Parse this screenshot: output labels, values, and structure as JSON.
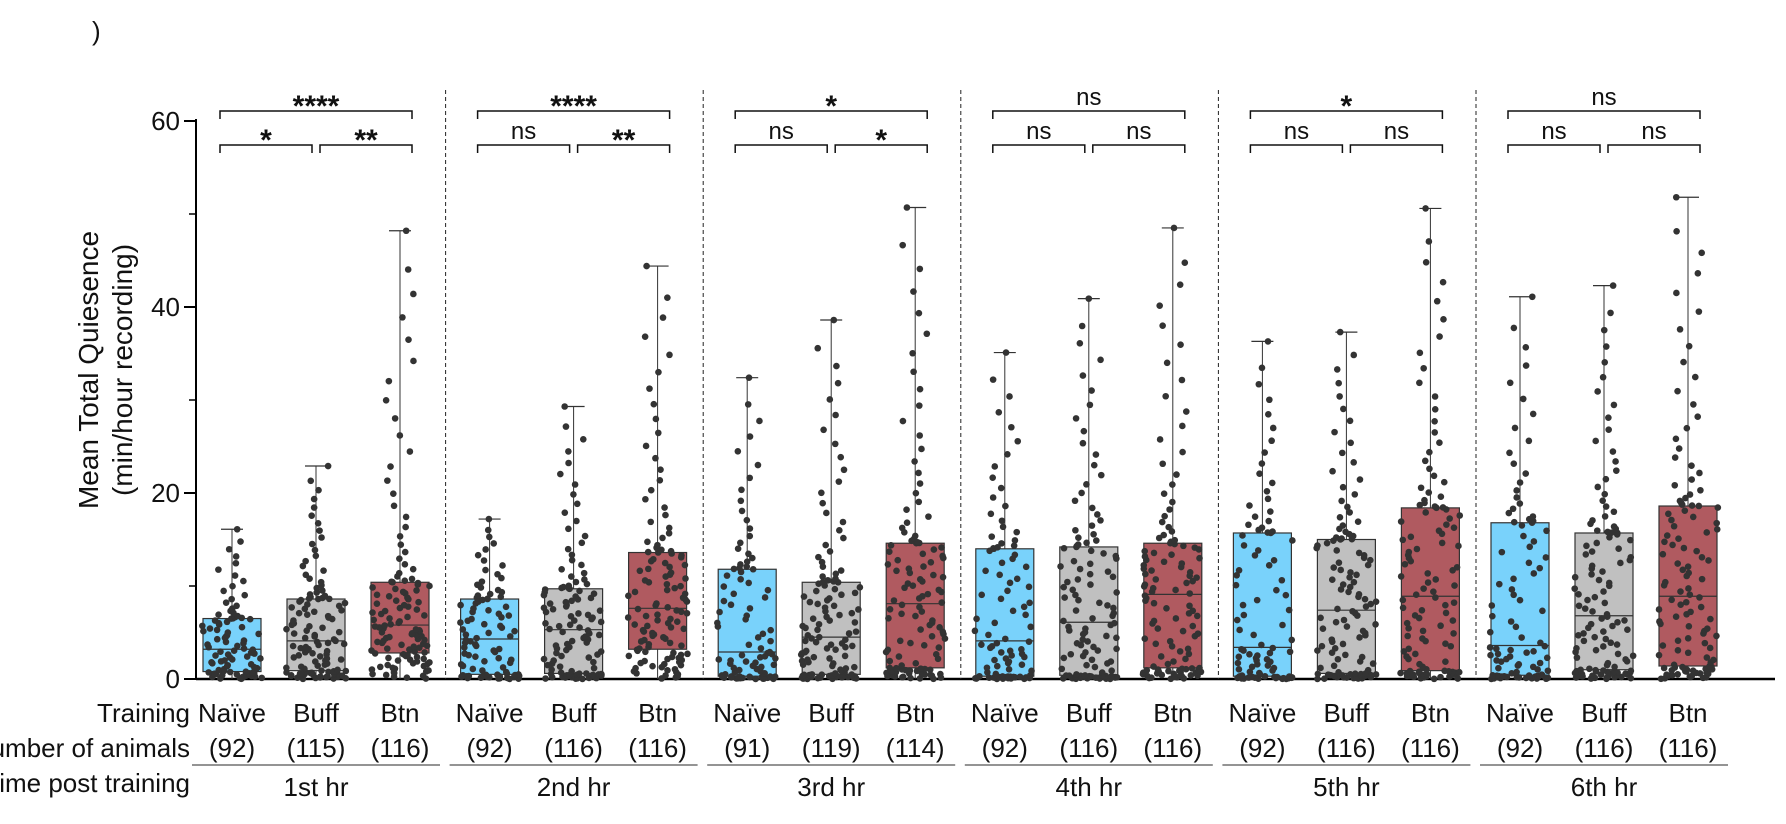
{
  "chart_data": {
    "type": "box",
    "panel_label": ")",
    "ylabel_lines": [
      "Mean Total Quiesence",
      "(min/hour recording)"
    ],
    "ylim": [
      0,
      60
    ],
    "yticks": [
      0,
      20,
      40,
      60
    ],
    "row_labels": [
      "Training",
      "umber of animals",
      "Time post training"
    ],
    "series_colors": {
      "Naïve": "#79d2fb",
      "Buff": "#c0c0c0",
      "Btn": "#b05a60"
    },
    "point_color": "#333333",
    "groups": [
      {
        "label": "1st hr",
        "boxes": [
          {
            "name": "Naïve",
            "n": "(92)",
            "min": 0,
            "q1": 0.8,
            "median": 3.2,
            "q3": 6.5,
            "max": 16.1
          },
          {
            "name": "Buff",
            "n": "(115)",
            "min": 0,
            "q1": 0.9,
            "median": 4.1,
            "q3": 8.6,
            "max": 22.9
          },
          {
            "name": "Btn",
            "n": "(116)",
            "min": 0,
            "q1": 2.8,
            "median": 5.8,
            "q3": 10.4,
            "max": 48.2
          }
        ],
        "sig": {
          "pair_12": "*",
          "pair_23": "**",
          "pair_13": "****"
        }
      },
      {
        "label": "2nd hr",
        "boxes": [
          {
            "name": "Naïve",
            "n": "(92)",
            "min": 0,
            "q1": 0.5,
            "median": 4.3,
            "q3": 8.6,
            "max": 17.2
          },
          {
            "name": "Buff",
            "n": "(116)",
            "min": 0,
            "q1": 0.6,
            "median": 5.3,
            "q3": 9.7,
            "max": 29.3
          },
          {
            "name": "Btn",
            "n": "(116)",
            "min": 0,
            "q1": 3.2,
            "median": 7.6,
            "q3": 13.6,
            "max": 44.4
          }
        ],
        "sig": {
          "pair_12": "ns",
          "pair_23": "**",
          "pair_13": "****"
        }
      },
      {
        "label": "3rd hr",
        "boxes": [
          {
            "name": "Naïve",
            "n": "(91)",
            "min": 0,
            "q1": 0.3,
            "median": 2.9,
            "q3": 11.8,
            "max": 32.4
          },
          {
            "name": "Buff",
            "n": "(119)",
            "min": 0,
            "q1": 0.5,
            "median": 4.5,
            "q3": 10.4,
            "max": 38.6
          },
          {
            "name": "Btn",
            "n": "(114)",
            "min": 0,
            "q1": 1.2,
            "median": 8.1,
            "q3": 14.6,
            "max": 50.7
          }
        ],
        "sig": {
          "pair_12": "ns",
          "pair_23": "*",
          "pair_13": "*"
        }
      },
      {
        "label": "4th hr",
        "boxes": [
          {
            "name": "Naïve",
            "n": "(92)",
            "min": 0,
            "q1": 0.3,
            "median": 4.1,
            "q3": 14.0,
            "max": 35.1
          },
          {
            "name": "Buff",
            "n": "(116)",
            "min": 0,
            "q1": 0.4,
            "median": 6.1,
            "q3": 14.2,
            "max": 40.9
          },
          {
            "name": "Btn",
            "n": "(116)",
            "min": 0,
            "q1": 1.2,
            "median": 9.1,
            "q3": 14.6,
            "max": 48.5
          }
        ],
        "sig": {
          "pair_12": "ns",
          "pair_23": "ns",
          "pair_13": "ns"
        }
      },
      {
        "label": "5th hr",
        "boxes": [
          {
            "name": "Naïve",
            "n": "(92)",
            "min": 0,
            "q1": 0.3,
            "median": 3.4,
            "q3": 15.7,
            "max": 36.3
          },
          {
            "name": "Buff",
            "n": "(116)",
            "min": 0,
            "q1": 0.6,
            "median": 7.4,
            "q3": 15.0,
            "max": 37.3
          },
          {
            "name": "Btn",
            "n": "(116)",
            "min": 0,
            "q1": 0.9,
            "median": 8.9,
            "q3": 18.4,
            "max": 50.6
          }
        ],
        "sig": {
          "pair_12": "ns",
          "pair_23": "ns",
          "pair_13": "*"
        }
      },
      {
        "label": "6th hr",
        "boxes": [
          {
            "name": "Naïve",
            "n": "(92)",
            "min": 0,
            "q1": 0.4,
            "median": 3.6,
            "q3": 16.8,
            "max": 41.1
          },
          {
            "name": "Buff",
            "n": "(116)",
            "min": 0,
            "q1": 1.0,
            "median": 6.8,
            "q3": 15.7,
            "max": 42.3
          },
          {
            "name": "Btn",
            "n": "(116)",
            "min": 0,
            "q1": 1.4,
            "median": 8.9,
            "q3": 18.6,
            "max": 51.8
          }
        ],
        "sig": {
          "pair_12": "ns",
          "pair_23": "ns",
          "pair_13": "ns"
        }
      }
    ]
  }
}
